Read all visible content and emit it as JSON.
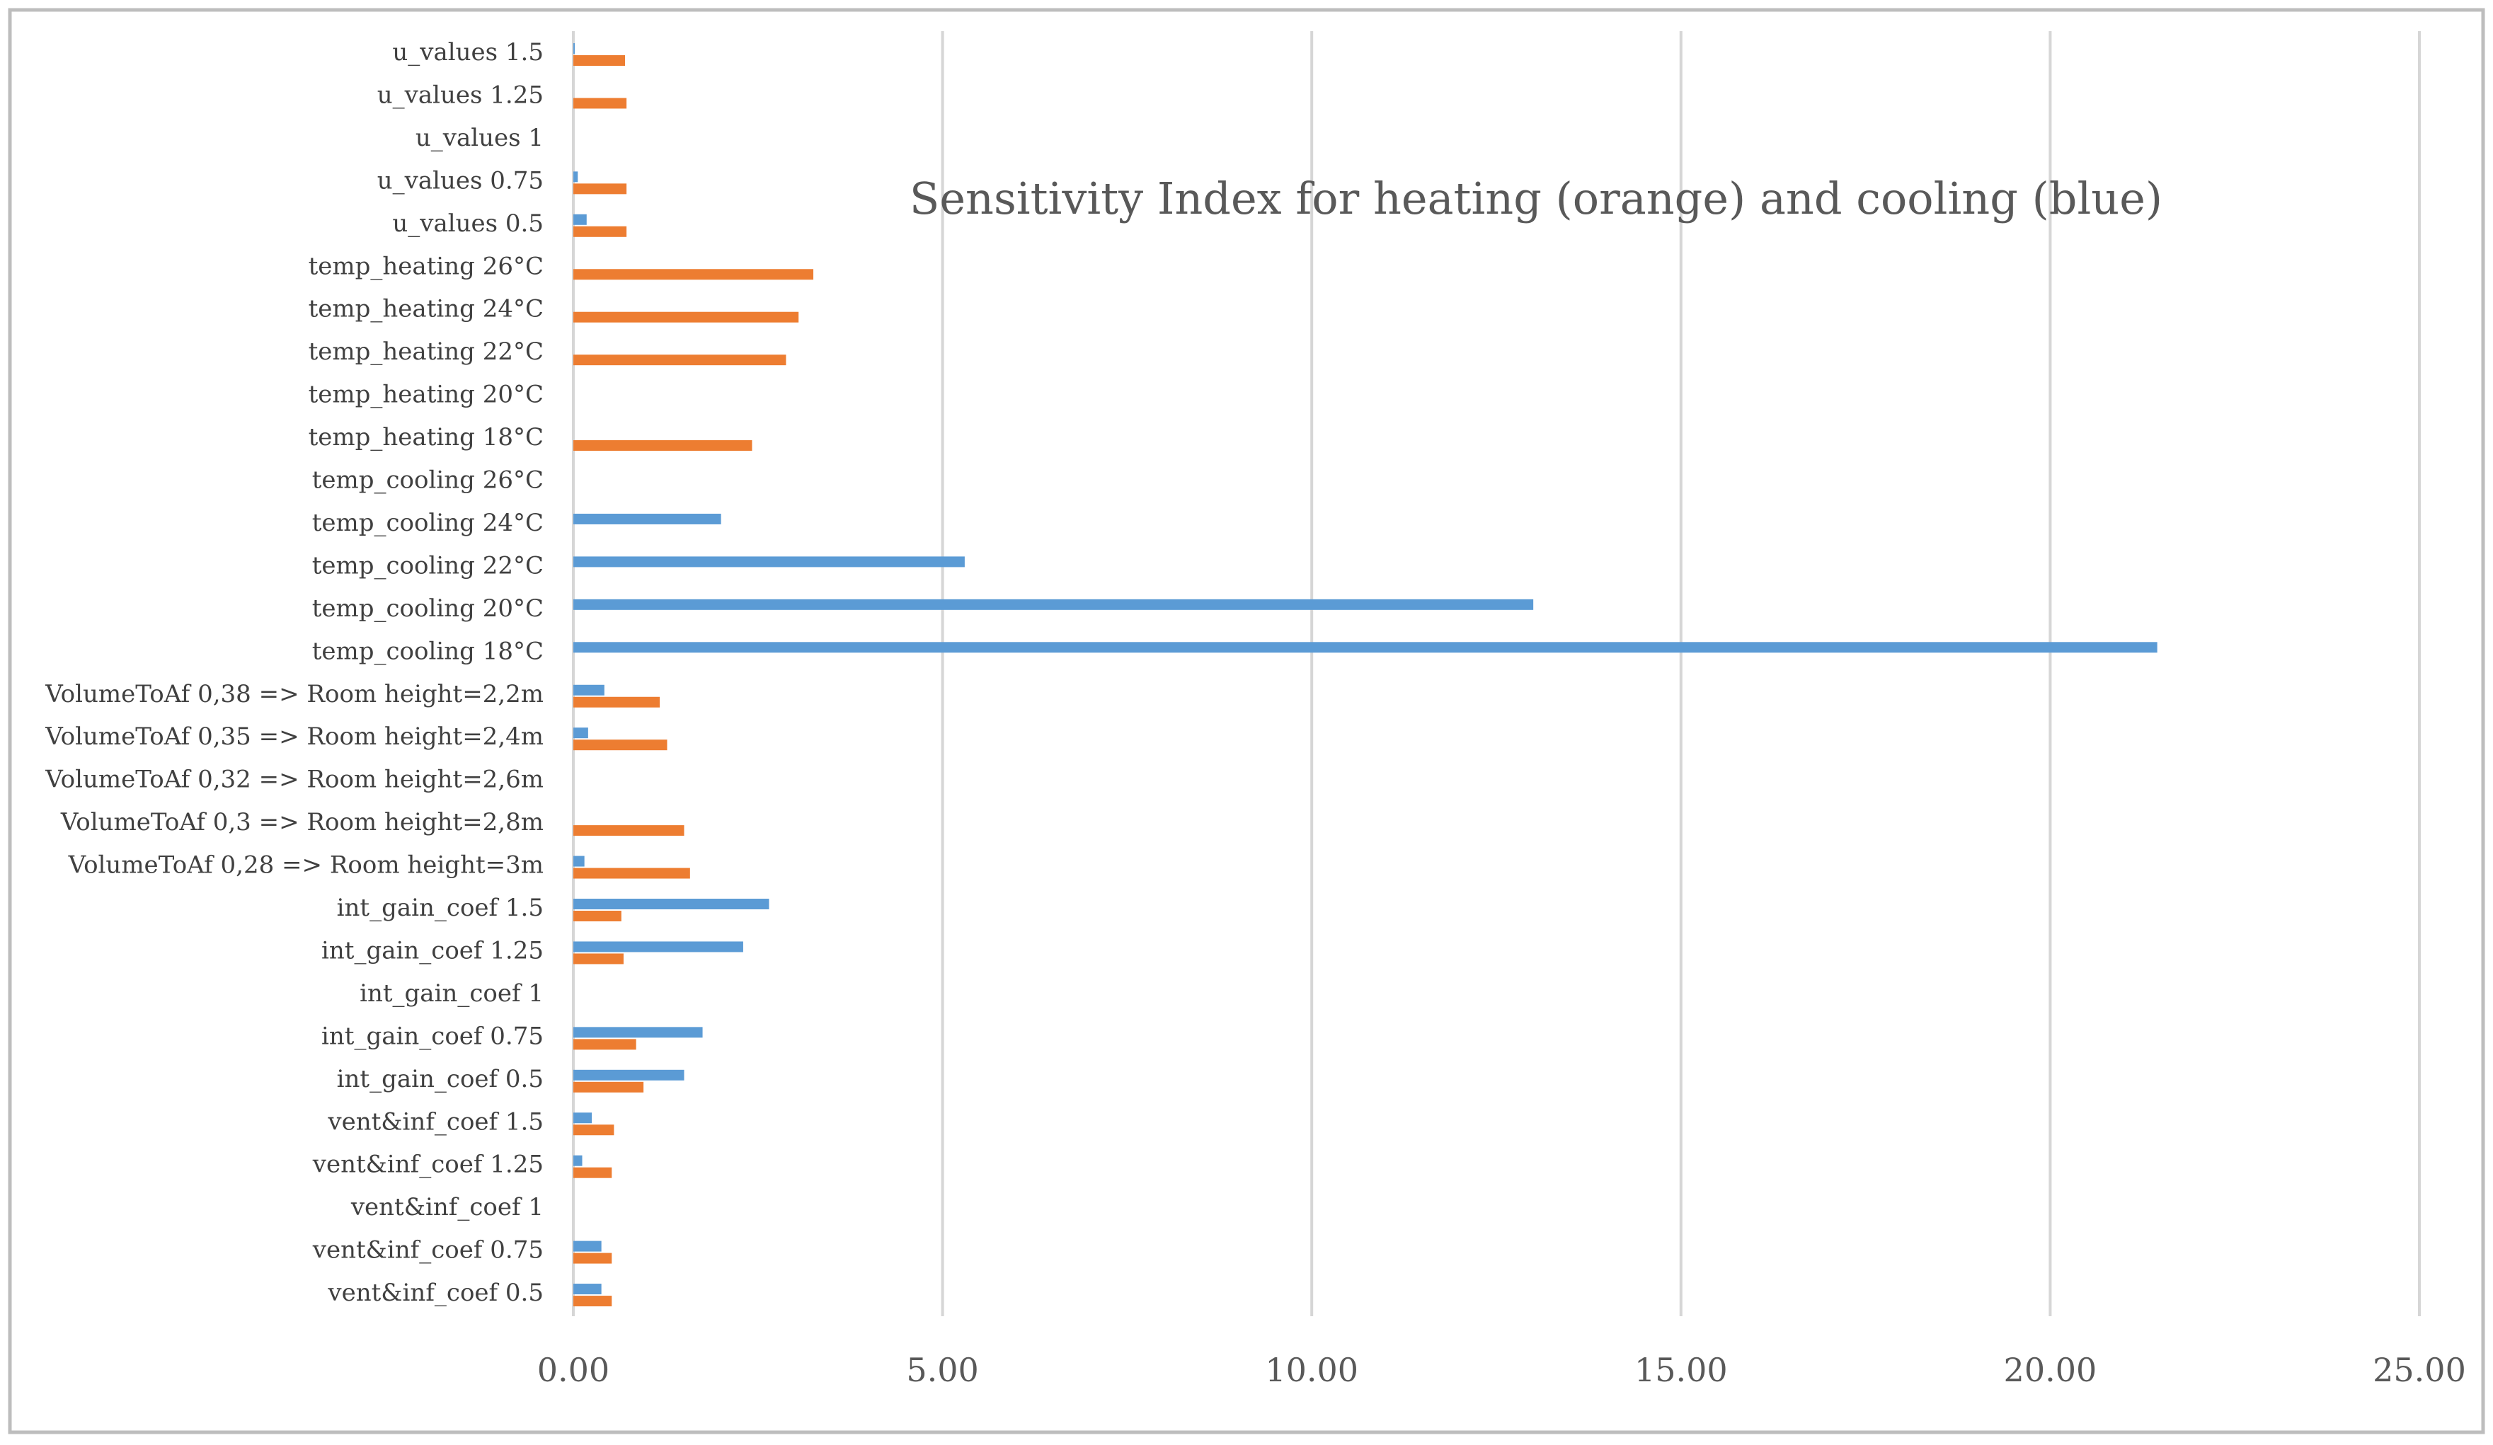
{
  "chart_data": {
    "type": "bar",
    "orientation": "horizontal",
    "title": "Sensitivity Index for heating (orange) and cooling (blue)",
    "xlim": [
      0,
      25
    ],
    "x_ticks": [
      "0.00",
      "5.00",
      "10.00",
      "15.00",
      "20.00",
      "25.00"
    ],
    "grid": "vertical",
    "colors": {
      "heating": "#ED7D31",
      "cooling": "#5B9BD5"
    },
    "categories": [
      "u_values 1.5",
      "u_values 1.25",
      "u_values 1",
      "u_values 0.75",
      "u_values 0.5",
      "temp_heating 26°C",
      "temp_heating 24°C",
      "temp_heating 22°C",
      "temp_heating 20°C",
      "temp_heating 18°C",
      "temp_cooling 26°C",
      "temp_cooling 24°C",
      "temp_cooling 22°C",
      "temp_cooling 20°C",
      "temp_cooling 18°C",
      "VolumeToAf 0,38 => Room height=2,2m",
      "VolumeToAf 0,35 => Room height=2,4m",
      "VolumeToAf 0,32 => Room height=2,6m",
      "VolumeToAf 0,3 => Room height=2,8m",
      "VolumeToAf 0,28 => Room height=3m",
      "int_gain_coef 1.5",
      "int_gain_coef 1.25",
      "int_gain_coef 1",
      "int_gain_coef 0.75",
      "int_gain_coef 0.5",
      "vent&inf_coef 1.5",
      "vent&inf_coef 1.25",
      "vent&inf_coef 1",
      "vent&inf_coef 0.75",
      "vent&inf_coef 0.5"
    ],
    "series": [
      {
        "key": "cooling",
        "values": [
          0.02,
          0,
          0,
          0.06,
          0.18,
          0,
          0,
          0,
          0,
          0,
          0,
          2.0,
          5.3,
          13.0,
          21.45,
          0.42,
          0.2,
          0,
          0,
          0.15,
          2.65,
          2.3,
          0,
          1.75,
          1.5,
          0.25,
          0.12,
          0,
          0.38,
          0.38
        ]
      },
      {
        "key": "heating",
        "values": [
          0.7,
          0.72,
          0,
          0.72,
          0.72,
          3.25,
          3.05,
          2.88,
          0,
          2.42,
          0,
          0,
          0,
          0,
          0,
          1.17,
          1.27,
          0,
          1.5,
          1.58,
          0.65,
          0.68,
          0,
          0.85,
          0.95,
          0.55,
          0.52,
          0,
          0.52,
          0.52
        ]
      }
    ]
  }
}
